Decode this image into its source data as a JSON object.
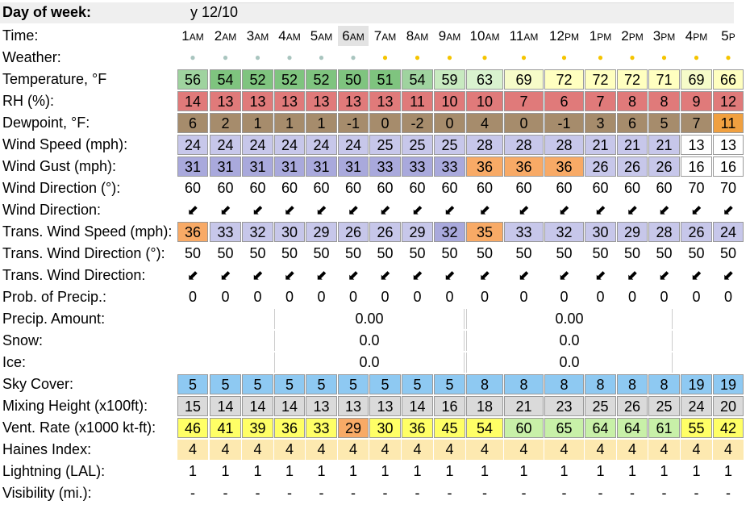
{
  "rows": [
    {
      "key": "day",
      "label": "Day of week:",
      "bold": true
    },
    {
      "key": "time",
      "label": "Time:"
    },
    {
      "key": "weather",
      "label": "Weather:"
    },
    {
      "key": "temp",
      "label": "Temperature, °F"
    },
    {
      "key": "rh",
      "label": "RH (%):"
    },
    {
      "key": "dew",
      "label": "Dewpoint, °F:"
    },
    {
      "key": "wspd",
      "label": "Wind Speed (mph):"
    },
    {
      "key": "wgust",
      "label": "Wind Gust (mph):"
    },
    {
      "key": "wdir",
      "label": "Wind Direction (°):"
    },
    {
      "key": "wdira",
      "label": "Wind Direction:"
    },
    {
      "key": "twspd",
      "label": "Trans. Wind Speed (mph):"
    },
    {
      "key": "twdir",
      "label": "Trans. Wind Direction (°):"
    },
    {
      "key": "twdira",
      "label": "Trans. Wind Direction:"
    },
    {
      "key": "pop",
      "label": "Prob. of Precip.:"
    },
    {
      "key": "qpf",
      "label": "Precip. Amount:"
    },
    {
      "key": "snow",
      "label": "Snow:"
    },
    {
      "key": "ice",
      "label": "Ice:"
    },
    {
      "key": "sky",
      "label": "Sky Cover:"
    },
    {
      "key": "mix",
      "label": "Mixing Height (x100ft):"
    },
    {
      "key": "vent",
      "label": "Vent. Rate (x1000 kt-ft):"
    },
    {
      "key": "haines",
      "label": "Haines Index:"
    },
    {
      "key": "lal",
      "label": "Lightning (LAL):"
    },
    {
      "key": "vis",
      "label": "Visibility (mi.):"
    }
  ],
  "day_value": "y 12/10",
  "times": [
    {
      "h": "1",
      "ap": "AM"
    },
    {
      "h": "2",
      "ap": "AM"
    },
    {
      "h": "3",
      "ap": "AM"
    },
    {
      "h": "4",
      "ap": "AM"
    },
    {
      "h": "5",
      "ap": "AM"
    },
    {
      "h": "6",
      "ap": "AM"
    },
    {
      "h": "7",
      "ap": "AM"
    },
    {
      "h": "8",
      "ap": "AM"
    },
    {
      "h": "9",
      "ap": "AM"
    },
    {
      "h": "10",
      "ap": "AM"
    },
    {
      "h": "11",
      "ap": "AM"
    },
    {
      "h": "12",
      "ap": "PM"
    },
    {
      "h": "1",
      "ap": "PM"
    },
    {
      "h": "2",
      "ap": "PM"
    },
    {
      "h": "3",
      "ap": "PM"
    },
    {
      "h": "4",
      "ap": "PM"
    },
    {
      "h": "5",
      "ap": "P"
    }
  ],
  "weather": [
    "night",
    "night",
    "night",
    "night",
    "night",
    "night",
    "sun",
    "sun",
    "sun",
    "sun",
    "sun",
    "sun",
    "sun",
    "sun",
    "sun",
    "sun",
    "sun"
  ],
  "weather_colors": {
    "night": "#a9c5bf",
    "sun": "#f5c400"
  },
  "arrow_glyph": "⬋",
  "temp": [
    "56",
    "54",
    "52",
    "52",
    "52",
    "50",
    "51",
    "54",
    "59",
    "63",
    "69",
    "72",
    "72",
    "72",
    "71",
    "69",
    "66"
  ],
  "rh": [
    "14",
    "13",
    "13",
    "13",
    "13",
    "13",
    "13",
    "11",
    "10",
    "10",
    "7",
    "6",
    "7",
    "8",
    "8",
    "9",
    "12"
  ],
  "dew": [
    "6",
    "2",
    "1",
    "1",
    "1",
    "-1",
    "0",
    "-2",
    "0",
    "4",
    "0",
    "-1",
    "3",
    "6",
    "5",
    "7",
    "11"
  ],
  "wspd": [
    "24",
    "24",
    "24",
    "24",
    "24",
    "24",
    "25",
    "25",
    "25",
    "28",
    "28",
    "28",
    "21",
    "21",
    "21",
    "13",
    "13"
  ],
  "wgust": [
    "31",
    "31",
    "31",
    "31",
    "31",
    "31",
    "33",
    "33",
    "33",
    "36",
    "36",
    "36",
    "26",
    "26",
    "26",
    "16",
    "16"
  ],
  "wdir": [
    "60",
    "60",
    "60",
    "60",
    "60",
    "60",
    "60",
    "60",
    "60",
    "60",
    "60",
    "60",
    "60",
    "60",
    "60",
    "70",
    "70"
  ],
  "twspd": [
    "36",
    "33",
    "32",
    "30",
    "29",
    "26",
    "26",
    "29",
    "32",
    "35",
    "33",
    "32",
    "30",
    "29",
    "28",
    "26",
    "24"
  ],
  "twdir": [
    "50",
    "50",
    "50",
    "50",
    "50",
    "50",
    "50",
    "50",
    "50",
    "50",
    "50",
    "50",
    "50",
    "50",
    "50",
    "50",
    "50"
  ],
  "pop": [
    "0",
    "0",
    "0",
    "0",
    "0",
    "0",
    "0",
    "0",
    "0",
    "0",
    "0",
    "0",
    "0",
    "0",
    "0",
    "0",
    "0"
  ],
  "qpf": [
    "0.00",
    "0.00"
  ],
  "snow": [
    "0.0",
    "0.0"
  ],
  "ice": [
    "0.0",
    "0.0"
  ],
  "sky": [
    "5",
    "5",
    "5",
    "5",
    "5",
    "5",
    "5",
    "5",
    "5",
    "8",
    "8",
    "8",
    "8",
    "8",
    "8",
    "19",
    "19"
  ],
  "mix": [
    "15",
    "14",
    "14",
    "14",
    "13",
    "13",
    "13",
    "14",
    "16",
    "18",
    "21",
    "23",
    "25",
    "26",
    "25",
    "24",
    "20"
  ],
  "vent": [
    "46",
    "41",
    "39",
    "36",
    "33",
    "29",
    "30",
    "36",
    "45",
    "54",
    "60",
    "65",
    "64",
    "64",
    "61",
    "55",
    "42"
  ],
  "haines": [
    "4",
    "4",
    "4",
    "4",
    "4",
    "4",
    "4",
    "4",
    "4",
    "4",
    "4",
    "4",
    "4",
    "4",
    "4",
    "4",
    "4"
  ],
  "lal": [
    "1",
    "1",
    "1",
    "1",
    "1",
    "1",
    "1",
    "1",
    "1",
    "1",
    "1",
    "1",
    "1",
    "1",
    "1",
    "1",
    "1"
  ],
  "vis": [
    "-",
    "-",
    "-",
    "-",
    "-",
    "-",
    "-",
    "-",
    "-",
    "-",
    "-",
    "-",
    "-",
    "-",
    "-",
    "-",
    "-"
  ],
  "colors": {
    "temp": [
      "#9fd39f",
      "#7fc47f",
      "#7fc47f",
      "#7fc47f",
      "#7fc47f",
      "#7fc47f",
      "#7fc47f",
      "#9fd39f",
      "#c8eac0",
      "#d9f2cf",
      "#f6fbc9",
      "#ffffc0",
      "#ffffc0",
      "#ffffc0",
      "#ffffc0",
      "#f6fbc9",
      "#ffffc0"
    ],
    "rh": "#e07a7a",
    "dew": "#a68c6c",
    "dew_last": "#f0a040",
    "wspd": [
      "#c7c7ea",
      "#c7c7ea",
      "#c7c7ea",
      "#c7c7ea",
      "#c7c7ea",
      "#c7c7ea",
      "#c7c7ea",
      "#c7c7ea",
      "#c7c7ea",
      "#c7c7ea",
      "#c7c7ea",
      "#c7c7ea",
      "#c7c7ea",
      "#c7c7ea",
      "#c7c7ea",
      "#ffffff",
      "#ffffff"
    ],
    "wgust": [
      "#a9a9dc",
      "#a9a9dc",
      "#a9a9dc",
      "#a9a9dc",
      "#a9a9dc",
      "#a9a9dc",
      "#a9a9dc",
      "#a9a9dc",
      "#a9a9dc",
      "#f8aa66",
      "#f8aa66",
      "#f8aa66",
      "#c7c7ea",
      "#c7c7ea",
      "#c7c7ea",
      "#ffffff",
      "#ffffff"
    ],
    "twspd": [
      "#f8aa66",
      "#c7c7ea",
      "#c7c7ea",
      "#c7c7ea",
      "#c7c7ea",
      "#c7c7ea",
      "#c7c7ea",
      "#c7c7ea",
      "#a9a9dc",
      "#f8aa66",
      "#c7c7ea",
      "#c7c7ea",
      "#c7c7ea",
      "#c7c7ea",
      "#c7c7ea",
      "#c7c7ea",
      "#c7c7ea"
    ],
    "sky": "#8ec9f2",
    "mix": "#dadada",
    "vent": [
      "#ffff66",
      "#ffff66",
      "#ffff66",
      "#ffff66",
      "#ffff66",
      "#f8aa66",
      "#ffff66",
      "#ffff66",
      "#ffff66",
      "#ffff66",
      "#c8f0a8",
      "#c8f0a8",
      "#c8f0a8",
      "#c8f0a8",
      "#c8f0a8",
      "#ffff66",
      "#ffff66"
    ],
    "haines": "#fde9b0",
    "time_hl": "#e3e3e3"
  }
}
